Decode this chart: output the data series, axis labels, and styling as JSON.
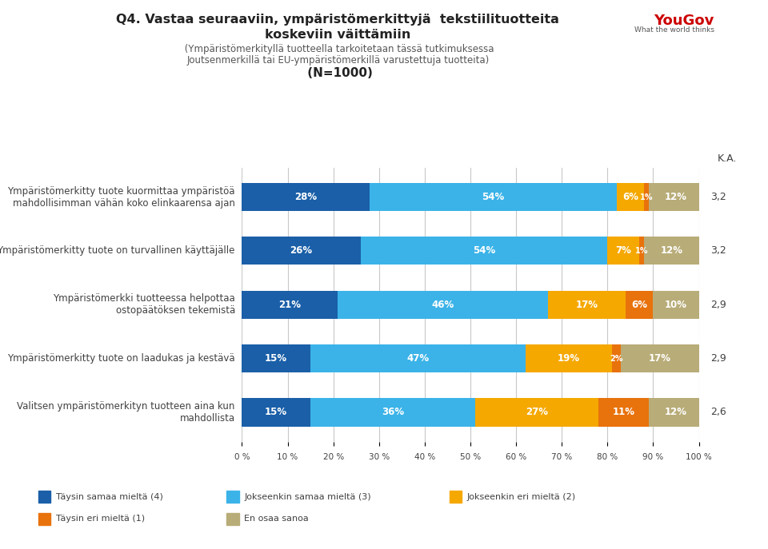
{
  "title_line1": "Q4. Vastaa seuraaviin, ympäristömerkittyjä  tekstiilituotteita",
  "title_line2_bold": "koskeviin väittämiin",
  "title_line2_small": " (Ympäristömerkityllä tuotteella tarkoitetaan tässä tutkimuksessa",
  "title_line3_small": "Joutsenmerkillä tai EU-ympäristömerkillä varustettuja tuotteita)",
  "title_n": " (N=1000)",
  "ka_label": "K.A.",
  "categories": [
    "Ympäristömerkitty tuote kuormittaa ympäristöä\nmahdollisimman vähän koko elinkaarensa ajan",
    "Ympäristömerkitty tuote on turvallinen käyttäjälle",
    "Ympäristömerkki tuotteessa helpottaa\nostopäätöksen tekemistä",
    "Ympäristömerkitty tuote on laadukas ja kestävä",
    "Valitsen ympäristömerkityn tuotteen aina kun\nmahdollista"
  ],
  "data": [
    [
      28,
      54,
      6,
      1,
      12
    ],
    [
      26,
      54,
      7,
      1,
      12
    ],
    [
      21,
      46,
      17,
      6,
      10
    ],
    [
      15,
      47,
      19,
      2,
      17
    ],
    [
      15,
      36,
      27,
      11,
      12
    ]
  ],
  "averages": [
    "3,2",
    "3,2",
    "2,9",
    "2,9",
    "2,6"
  ],
  "colors": [
    "#1a5fa8",
    "#3bb3e8",
    "#f5a800",
    "#e8720c",
    "#b8ac78"
  ],
  "legend_labels": [
    "Täysin samaa mieltä (4)",
    "Jokseenkin samaa mieltä (3)",
    "Jokseenkin eri mieltä (2)",
    "Täysin eri mieltä (1)",
    "En osaa sanoa"
  ],
  "bar_height": 0.52,
  "background_color": "#ffffff",
  "text_color": "#404040",
  "grid_color": "#c8c8c8",
  "xtick_labels": [
    "0 %",
    "10 %",
    "20 %",
    "30 %",
    "40 %",
    "50 %",
    "60 %",
    "70 %",
    "80 %",
    "90 %",
    "100 %"
  ]
}
